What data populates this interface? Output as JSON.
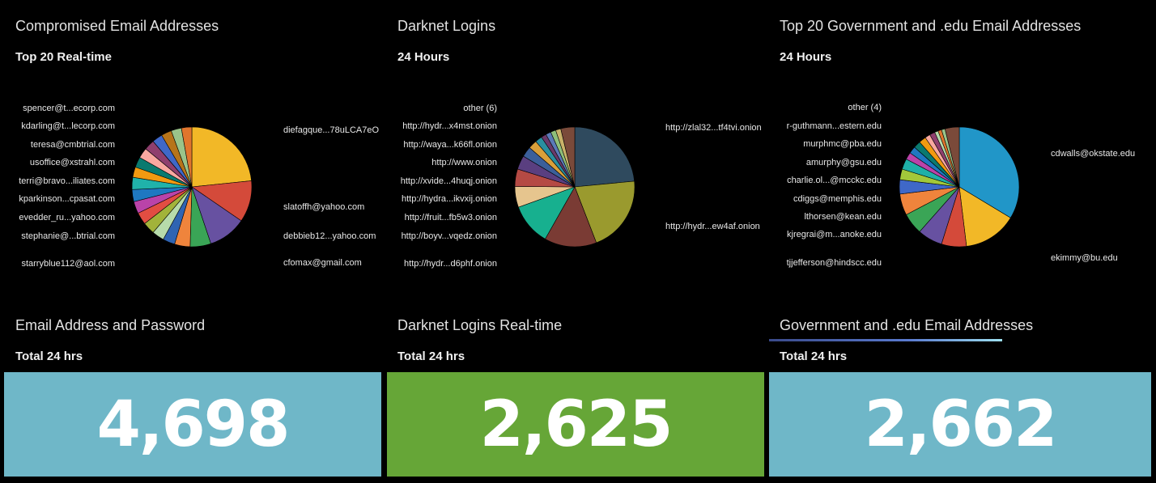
{
  "panels": [
    {
      "title": "Compromised Email Addresses",
      "subtitle": "Top 20 Real-time",
      "left_labels": [
        "spencer@t...ecorp.com",
        "kdarling@t...lecorp.com",
        "teresa@cmbtrial.com",
        "usoffice@xstrahl.com",
        "terri@bravo...iliates.com",
        "kparkinson...cpasat.com",
        "evedder_ru...yahoo.com",
        "stephanie@...btrial.com",
        "starryblue112@aol.com"
      ],
      "right_labels": [
        "diefagque...78uLCA7eO",
        "slatoffh@yahoo.com",
        "debbieb12...yahoo.com",
        "cfomax@gmail.com"
      ]
    },
    {
      "title": "Darknet Logins",
      "subtitle": "24 Hours",
      "left_labels": [
        "other (6)",
        "http://hydr...x4mst.onion",
        "http://waya...k66fl.onion",
        "http://www.onion",
        "http://xvide...4huqj.onion",
        "http://hydra...ikvxij.onion",
        "http://fruit...fb5w3.onion",
        "http://boyv...vqedz.onion",
        "http://hydr...d6phf.onion"
      ],
      "right_labels": [
        "http://zlal32...tf4tvi.onion",
        "http://hydr...ew4af.onion"
      ]
    },
    {
      "title": "Top 20 Government and .edu Email Addresses",
      "subtitle": "24 Hours",
      "left_labels": [
        "other (4)",
        "r-guthmann...estern.edu",
        "murphmc@pba.edu",
        "amurphy@gsu.edu",
        "charlie.ol...@mcckc.edu",
        "cdiggs@memphis.edu",
        "lthorsen@kean.edu",
        "kjregrai@m...anoke.edu",
        "tjjefferson@hindscc.edu"
      ],
      "right_labels": [
        "cdwalls@okstate.edu",
        "ekimmy@bu.edu"
      ]
    }
  ],
  "metrics": [
    {
      "title": "Email Address and Password",
      "subtitle": "Total 24 hrs",
      "value": "4,698",
      "color": "#6fb7c8"
    },
    {
      "title": "Darknet Logins Real-time",
      "subtitle": "Total 24 hrs",
      "value": "2,625",
      "color": "#66a637"
    },
    {
      "title": "Government and .edu Email Addresses",
      "subtitle": "Total 24 hrs",
      "value": "2,662",
      "color": "#6fb7c8"
    }
  ],
  "pies": [
    {
      "slices": [
        {
          "v": 25,
          "c": "#f2b827"
        },
        {
          "v": 12,
          "c": "#d44a3a"
        },
        {
          "v": 11,
          "c": "#6751a1"
        },
        {
          "v": 6,
          "c": "#3aa556"
        },
        {
          "v": 4.5,
          "c": "#ef843c"
        },
        {
          "v": 3.5,
          "c": "#2f64b2"
        },
        {
          "v": 3.5,
          "c": "#b7dbab"
        },
        {
          "v": 3.5,
          "c": "#a2b33a"
        },
        {
          "v": 3.5,
          "c": "#e24d42"
        },
        {
          "v": 3.5,
          "c": "#ba43a9"
        },
        {
          "v": 3.5,
          "c": "#1f78c1"
        },
        {
          "v": 3.5,
          "c": "#20b2aa"
        },
        {
          "v": 3,
          "c": "#f29a11"
        },
        {
          "v": 3,
          "c": "#0a7a6f"
        },
        {
          "v": 3,
          "c": "#f9a8a0"
        },
        {
          "v": 3,
          "c": "#8f3f6e"
        },
        {
          "v": 3,
          "c": "#3f68c8"
        },
        {
          "v": 3,
          "c": "#b7741a"
        },
        {
          "v": 3,
          "c": "#9ac48a"
        },
        {
          "v": 3,
          "c": "#e0752d"
        }
      ]
    },
    {
      "slices": [
        {
          "v": 25,
          "c": "#2f4a5e"
        },
        {
          "v": 22,
          "c": "#9a9a2e"
        },
        {
          "v": 15,
          "c": "#7a3b34"
        },
        {
          "v": 12,
          "c": "#17b08f"
        },
        {
          "v": 6,
          "c": "#e6c58e"
        },
        {
          "v": 5,
          "c": "#b54a44"
        },
        {
          "v": 4,
          "c": "#5a3f80"
        },
        {
          "v": 3,
          "c": "#3b5f9a"
        },
        {
          "v": 2.5,
          "c": "#d9a03a"
        },
        {
          "v": 2,
          "c": "#2a8fa0"
        },
        {
          "v": 1.5,
          "c": "#6a3a6a"
        },
        {
          "v": 1.5,
          "c": "#5a7ab8"
        },
        {
          "v": 1.5,
          "c": "#8fbf7a"
        },
        {
          "v": 1.5,
          "c": "#c9b36a"
        },
        {
          "v": 4,
          "c": "#7a4a3a"
        }
      ]
    },
    {
      "slices": [
        {
          "v": 35,
          "c": "#2196c8"
        },
        {
          "v": 15,
          "c": "#f2b827"
        },
        {
          "v": 7,
          "c": "#d44a3a"
        },
        {
          "v": 7,
          "c": "#6751a1"
        },
        {
          "v": 6,
          "c": "#3aa556"
        },
        {
          "v": 6,
          "c": "#ef843c"
        },
        {
          "v": 4,
          "c": "#3f68c8"
        },
        {
          "v": 3,
          "c": "#a2c83a"
        },
        {
          "v": 3,
          "c": "#1fb0a8"
        },
        {
          "v": 2,
          "c": "#ba43a9"
        },
        {
          "v": 2,
          "c": "#1f78c1"
        },
        {
          "v": 2,
          "c": "#0a7a6f"
        },
        {
          "v": 2,
          "c": "#f29a11"
        },
        {
          "v": 1.5,
          "c": "#f9a8a0"
        },
        {
          "v": 1.5,
          "c": "#8f3f6e"
        },
        {
          "v": 1,
          "c": "#b7dbab"
        },
        {
          "v": 1,
          "c": "#e0752d"
        },
        {
          "v": 1,
          "c": "#9ac48a"
        },
        {
          "v": 4,
          "c": "#7a4a3a"
        }
      ]
    }
  ]
}
